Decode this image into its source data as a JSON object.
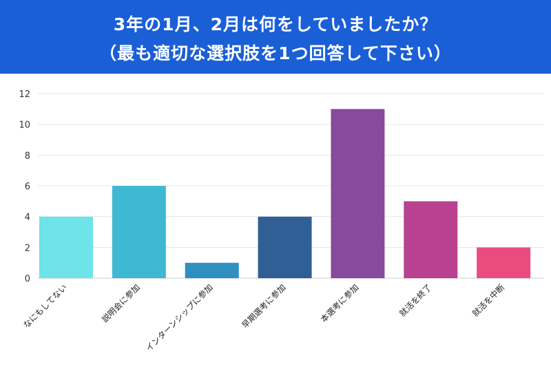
{
  "header": {
    "title_line1": "3年の1月、2月は何をしていましたか？",
    "title_line2": "（最も適切な選択肢を1つ回答して下さい）",
    "background": "#1a5fd6"
  },
  "chart_data": {
    "type": "bar",
    "title": "3年の1月、2月は何をしていましたか？（最も適切な選択肢を1つ回答して下さい）",
    "xlabel": "",
    "ylabel": "",
    "ylim": [
      0,
      12
    ],
    "yticks": [
      0,
      2,
      4,
      6,
      8,
      10,
      12
    ],
    "grid": true,
    "categories": [
      "なにもしてない",
      "説明会に参加",
      "インターンシップに参加",
      "早期選考に参加",
      "本選考に参加",
      "就活を終了",
      "就活を中断"
    ],
    "values": [
      4,
      6,
      1,
      4,
      11,
      5,
      2
    ],
    "colors": [
      "#6ee3e8",
      "#3fb8d4",
      "#2e8fc0",
      "#2f5f95",
      "#874a9c",
      "#b8428f",
      "#ea4c80"
    ]
  }
}
